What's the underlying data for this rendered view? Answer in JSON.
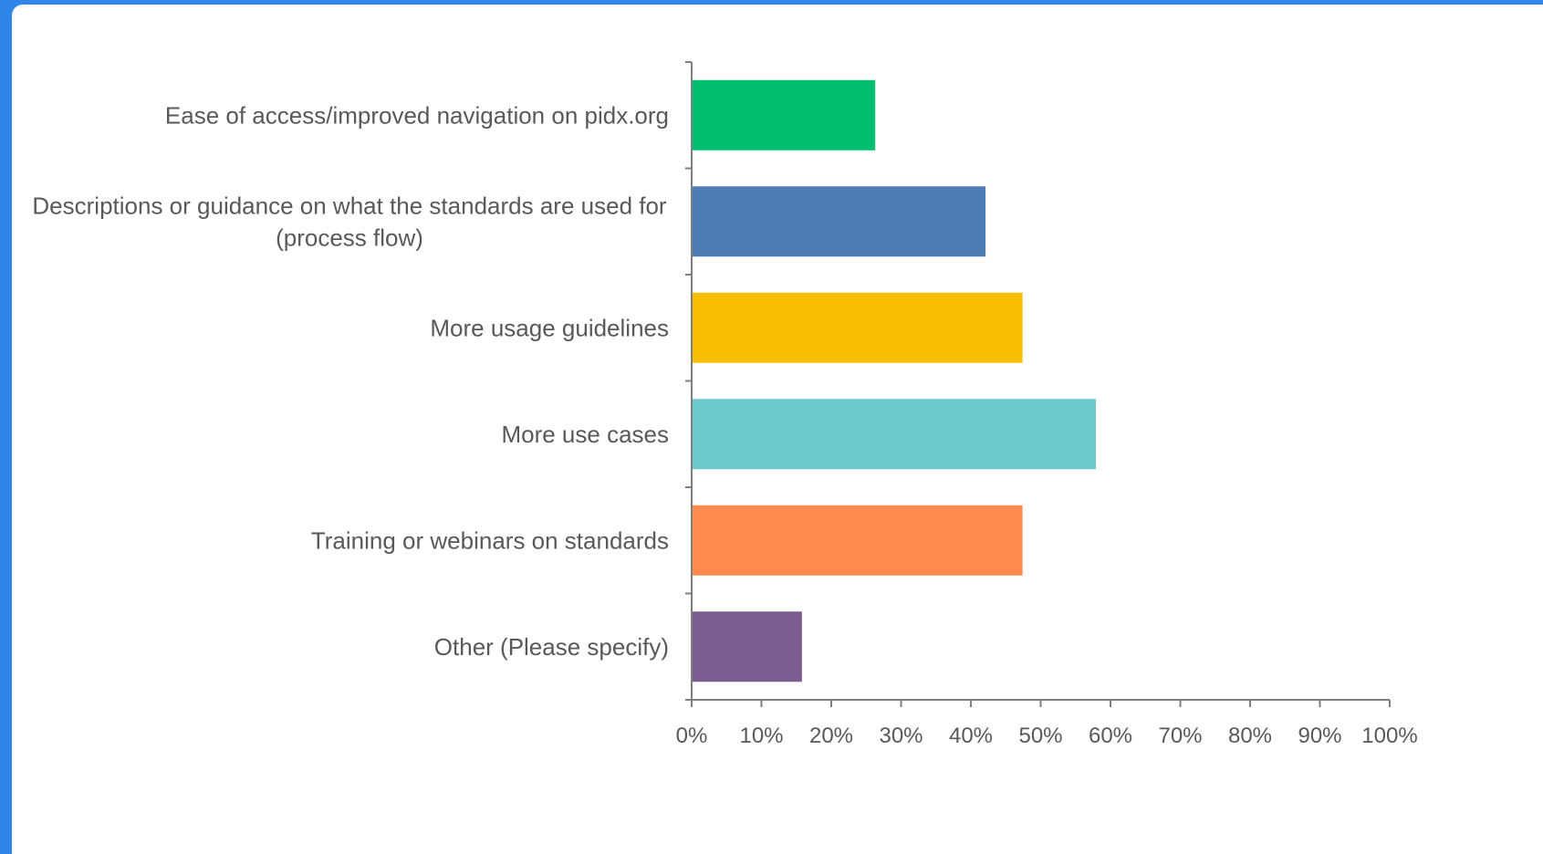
{
  "chart_data": {
    "type": "bar",
    "orientation": "horizontal",
    "categories": [
      [
        "Ease of access/improved navigation on pidx.org"
      ],
      [
        "Descriptions or guidance on what the standards are used for",
        "(process flow)"
      ],
      [
        "More usage guidelines"
      ],
      [
        "More use cases"
      ],
      [
        "Training or webinars on standards"
      ],
      [
        "Other (Please specify)"
      ]
    ],
    "values": [
      26.3,
      42.1,
      47.4,
      57.9,
      47.4,
      15.8
    ],
    "colors": [
      "#00bf6f",
      "#4e7cb5",
      "#f7be00",
      "#6cc8cb",
      "#ff8b4f",
      "#7c5d91"
    ],
    "xlim": [
      0,
      100
    ],
    "xticks": [
      "0%",
      "10%",
      "20%",
      "30%",
      "40%",
      "50%",
      "60%",
      "70%",
      "80%",
      "90%",
      "100%"
    ],
    "title": "",
    "xlabel": "",
    "ylabel": "",
    "grid": false,
    "legend": "none"
  },
  "colors": {
    "frame": "#2f86e8",
    "background": "#ffffff",
    "axis": "#7f7f7f",
    "text": "#595959"
  }
}
